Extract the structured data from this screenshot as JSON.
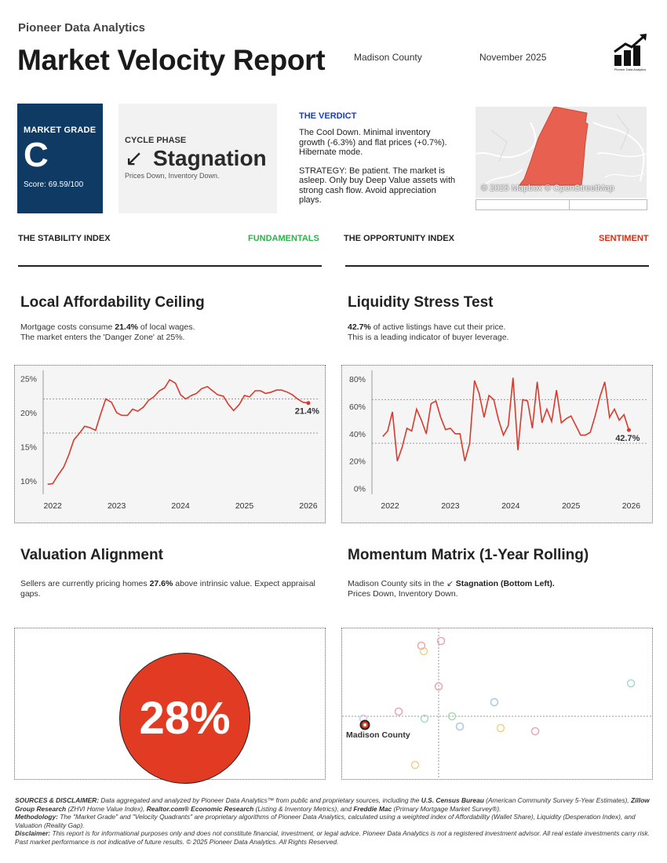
{
  "header": {
    "brand": "Pioneer Data Analytics",
    "title": "Market Velocity Report",
    "county": "Madison County",
    "date": "November 2025",
    "logo_icon": "bar-chart-up-arrow-icon",
    "logo_text": "Pioneer Data Analytics"
  },
  "grade": {
    "label": "MARKET GRADE",
    "letter": "C",
    "score": "Score: 69.59/100",
    "color": "#0e3a63"
  },
  "phase": {
    "label": "CYCLE PHASE",
    "arrow": "↙",
    "name": "Stagnation",
    "sub": "Prices Down, Inventory Down."
  },
  "verdict": {
    "title": "THE VERDICT",
    "p1": "The Cool Down. Minimal inventory growth (-6.3%) and flat prices (+0.7%). Hibernate mode.",
    "p2": "STRATEGY: Be patient. The market is asleep. Only buy Deep Value assets with strong cash flow. Avoid appreciation plays.",
    "color": "#1a3cc8"
  },
  "map": {
    "credit": "© 2025 Mapbox © OpenStreetMap",
    "region_color": "#e8604f"
  },
  "stability": {
    "title": "THE STABILITY INDEX",
    "tag": "FUNDAMENTALS",
    "tag_color": "#2db34a"
  },
  "opportunity": {
    "title": "THE OPPORTUNITY INDEX",
    "tag": "SENTIMENT",
    "tag_color": "#e02a10"
  },
  "affordability": {
    "title": "Local Affordability Ceiling",
    "text_pre": "Mortgage costs consume ",
    "text_bold": "21.4%",
    "text_post": " of local wages.",
    "line2": "The market enters the 'Danger Zone' at 25%."
  },
  "liquidity": {
    "title": "Liquidity Stress Test",
    "text_bold": "42.7%",
    "text_post": " of active listings have cut their price.",
    "line2": "This is a leading indicator of buyer leverage."
  },
  "valuation": {
    "title": "Valuation Alignment",
    "text_pre": "Sellers are currently pricing homes ",
    "text_bold": "27.6%",
    "text_post": " above intrinsic value. Expect appraisal gaps.",
    "big_value": "28%",
    "circle_color": "#e13b24"
  },
  "momentum": {
    "title": "Momentum Matrix (1-Year Rolling)",
    "text_pre": "Madison County sits in the ",
    "arrow": "↙",
    "text_bold": "Stagnation (Bottom Left).",
    "line2": "Prices Down, Inventory Down.",
    "point_label": "Madison County"
  },
  "chart_data": [
    {
      "type": "line",
      "name": "affordability",
      "x_ticks": [
        "2022",
        "2023",
        "2024",
        "2025",
        "2026"
      ],
      "y_ticks": [
        "10%",
        "15%",
        "20%",
        "25%"
      ],
      "ylim": [
        8.5,
        25.5
      ],
      "xlim": [
        2021.85,
        2026.05
      ],
      "grid_y": [
        17,
        22
      ],
      "end_label": "21.4%",
      "color": "#d93a2b",
      "x": [
        2021.92,
        2022.0,
        2022.08,
        2022.17,
        2022.25,
        2022.33,
        2022.42,
        2022.5,
        2022.58,
        2022.67,
        2022.75,
        2022.83,
        2022.92,
        2023.0,
        2023.08,
        2023.17,
        2023.25,
        2023.33,
        2023.42,
        2023.5,
        2023.58,
        2023.67,
        2023.75,
        2023.83,
        2023.92,
        2024.0,
        2024.08,
        2024.17,
        2024.25,
        2024.33,
        2024.42,
        2024.5,
        2024.58,
        2024.67,
        2024.75,
        2024.83,
        2024.92,
        2025.0,
        2025.08,
        2025.17,
        2025.25,
        2025.33,
        2025.42,
        2025.5,
        2025.58,
        2025.67,
        2025.75,
        2025.83,
        2025.92,
        2026.0
      ],
      "y": [
        9.5,
        9.6,
        10.8,
        12.0,
        13.8,
        16.0,
        17.0,
        18.0,
        17.8,
        17.4,
        19.8,
        22.0,
        21.5,
        20.0,
        19.6,
        19.6,
        20.5,
        20.2,
        20.8,
        21.8,
        22.3,
        23.2,
        23.6,
        24.8,
        24.3,
        22.6,
        22.0,
        22.5,
        22.8,
        23.5,
        23.8,
        23.2,
        22.6,
        22.4,
        21.2,
        20.3,
        21.2,
        22.5,
        22.3,
        23.2,
        23.2,
        22.8,
        23.0,
        23.3,
        23.3,
        23.0,
        22.6,
        22.0,
        21.5,
        21.4
      ]
    },
    {
      "type": "line",
      "name": "liquidity",
      "x_ticks": [
        "2022",
        "2023",
        "2024",
        "2025",
        "2026"
      ],
      "y_ticks": [
        "0%",
        "20%",
        "40%",
        "60%",
        "80%"
      ],
      "ylim": [
        -2,
        83
      ],
      "xlim": [
        2021.7,
        2026.15
      ],
      "grid_y": [
        33,
        65
      ],
      "end_label": "42.7%",
      "color": "#d93a2b",
      "x": [
        2021.88,
        2021.96,
        2022.04,
        2022.12,
        2022.2,
        2022.28,
        2022.36,
        2022.44,
        2022.52,
        2022.6,
        2022.68,
        2022.76,
        2022.84,
        2022.92,
        2023.0,
        2023.08,
        2023.16,
        2023.24,
        2023.32,
        2023.4,
        2023.48,
        2023.56,
        2023.64,
        2023.72,
        2023.8,
        2023.88,
        2023.96,
        2024.04,
        2024.12,
        2024.2,
        2024.28,
        2024.36,
        2024.44,
        2024.52,
        2024.6,
        2024.68,
        2024.76,
        2024.84,
        2024.92,
        2025.0,
        2025.08,
        2025.16,
        2025.24,
        2025.32,
        2025.4,
        2025.48,
        2025.56,
        2025.64,
        2025.72,
        2025.8,
        2025.88,
        2025.96
      ],
      "y": [
        38,
        42,
        56,
        20,
        30,
        44,
        42,
        58,
        50,
        40,
        62,
        64,
        52,
        43,
        44,
        40,
        40,
        20,
        33,
        79,
        69,
        52,
        68,
        65,
        50,
        39,
        46,
        81,
        28,
        65,
        64,
        44,
        78,
        48,
        58,
        49,
        72,
        48,
        51,
        53,
        46,
        39,
        39,
        41,
        53,
        67,
        78,
        52,
        58,
        50,
        54,
        42.7
      ]
    },
    {
      "type": "scatter",
      "name": "momentum",
      "xlim": [
        0,
        394
      ],
      "ylim": [
        0,
        192
      ],
      "divider_x": 123,
      "divider_y": 112,
      "highlight": {
        "label": "Madison County",
        "x": 29,
        "y": 123
      },
      "points": [
        {
          "x": 101,
          "y": 22,
          "color": "#e8a8b0"
        },
        {
          "x": 126,
          "y": 16,
          "color": "#e8a8b0"
        },
        {
          "x": 104,
          "y": 29,
          "color": "#f0d08a"
        },
        {
          "x": 123,
          "y": 74,
          "color": "#e8a8b0"
        },
        {
          "x": 368,
          "y": 70,
          "color": "#a8d8d0"
        },
        {
          "x": 194,
          "y": 94,
          "color": "#a8c8e8"
        },
        {
          "x": 72,
          "y": 106,
          "color": "#e8a8b0"
        },
        {
          "x": 140,
          "y": 112,
          "color": "#a8d8b8"
        },
        {
          "x": 105,
          "y": 115,
          "color": "#a8d8d0"
        },
        {
          "x": 150,
          "y": 125,
          "color": "#a8c8e8"
        },
        {
          "x": 202,
          "y": 127,
          "color": "#f0d08a"
        },
        {
          "x": 246,
          "y": 131,
          "color": "#e8a8b0"
        },
        {
          "x": 27,
          "y": 115,
          "color": "#d0c8e8"
        },
        {
          "x": 93,
          "y": 174,
          "color": "#f0d08a"
        }
      ]
    }
  ],
  "footer": {
    "l1_label": "SOURCES & DISCLAIMER:",
    "l1a": " Data aggregated and analyzed by Pioneer Data Analytics™ from public and proprietary sources, including the ",
    "l1_census": "U.S. Census Bureau",
    "l1b": " (American Community Survey 5-Year Estimates), ",
    "l1_zillow": "Zillow Group Research",
    "l1c": " (ZHVI Home Value Index), ",
    "l1_realtor": "Realtor.com® Economic Research",
    "l1d": " (Listing & Inventory Metrics), and ",
    "l1_freddie": "Freddie Mac",
    "l1e": " (Primary Mortgage Market Survey®).",
    "l2_label": "Methodology:",
    "l2": " The \"Market Grade\" and \"Velocity Quadrants\" are proprietary algorithms of Pioneer Data Analytics, calculated using a weighted index of Affordability (Wallet Share), Liquidity (Desperation Index), and Valuation (Reality Gap).",
    "l3_label": "Disclaimer:",
    "l3": " This report is for informational purposes only and does not constitute financial, investment, or legal advice. Pioneer Data Analytics is not a registered investment advisor. All real estate investments carry risk. Past market performance is not indicative of future results. © 2025 Pioneer Data Analytics. All Rights Reserved."
  }
}
